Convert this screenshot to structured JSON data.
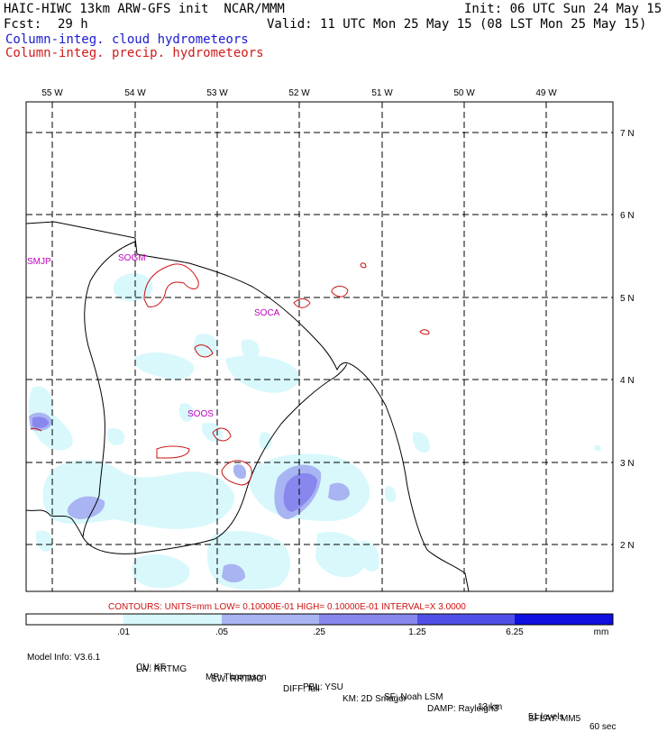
{
  "header": {
    "title_left": "HAIC-HIWC 13km ARW-GFS init  NCAR/MMM",
    "init": "Init: 06 UTC Sun 24 May 15",
    "fcst_label": "Fcst:",
    "fcst_value": "29 h",
    "valid": "Valid: 11 UTC Mon 25 May 15 (08 LST Mon 25 May 15)",
    "field_cloud": "Column-integ. cloud hydrometeors",
    "field_precip": "Column-integ. precip. hydrometeors"
  },
  "colors": {
    "cloud_label": "#1a1ad0",
    "precip_label": "#d01a1a",
    "station": "#c000c0",
    "contour": "#cc1111",
    "shade_1": "#d8f8fc",
    "shade_2": "#a9b4f2",
    "shade_3": "#8787ee",
    "shade_4": "#5050e8",
    "shade_5": "#1010e0"
  },
  "map": {
    "lon_labels": [
      "55 W",
      "54 W",
      "53 W",
      "52 W",
      "51 W",
      "50 W",
      "49 W"
    ],
    "lat_labels": [
      "7 N",
      "6 N",
      "5 N",
      "4 N",
      "3 N",
      "2 N"
    ],
    "stations": [
      "SMJP",
      "SOGM",
      "SOCA",
      "SOOS"
    ]
  },
  "contour_info": "CONTOURS:  UNITS=mm  LOW= 0.10000E-01  HIGH= 0.10000E-01  INTERVAL=X  3.0000",
  "colorbar": {
    "levels": [
      ".01",
      ".05",
      ".25",
      "1.25",
      "6.25"
    ],
    "units": "mm"
  },
  "model_info": {
    "line1": [
      "Model Info: V3.6.1",
      "CU: KF",
      "MP: Thompson",
      "PBL: YSU",
      "SF: Noah LSM",
      "13 km",
      "51 levels",
      "60 sec"
    ],
    "line2": [
      "LW: RRTMG",
      "SW: RRTMG",
      "DIFF: full",
      "KM: 2D Smagor",
      "DAMP: Rayleigh3",
      "SFLAY: MM5"
    ]
  }
}
